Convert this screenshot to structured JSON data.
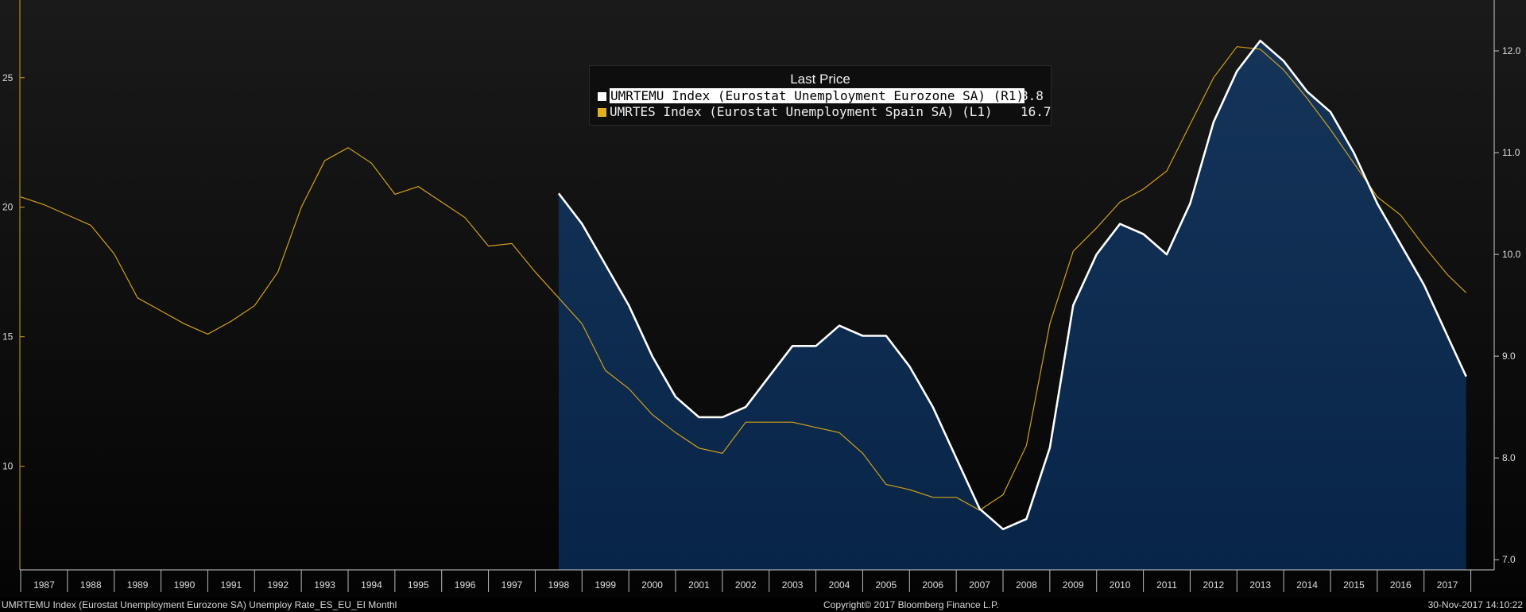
{
  "colors": {
    "background": "#000000",
    "area_fill": "#0f2e52",
    "emu_line": "#ffffff",
    "es_line": "#d4a017",
    "axis": "#cccccc",
    "tick_label": "#dddddd"
  },
  "legend": {
    "title": "Last Price",
    "items": [
      {
        "label": "UMRTEMU Index (Eurostat Unemployment Eurozone SA)  (R1)",
        "value": "8.8",
        "color": "#ffffff"
      },
      {
        "label": "UMRTES Index (Eurostat Unemployment Spain SA)  (L1)",
        "value": "16.7",
        "color": "#e0b020"
      }
    ]
  },
  "footer": {
    "left": "UMRTEMU Index (Eurostat Unemployment Eurozone SA) Unemploy Rate_ES_EU_EI  Monthl",
    "center": "Copyright© 2017 Bloomberg Finance L.P.",
    "right": "30-Nov-2017 14:10:22"
  },
  "chart_data": {
    "type": "line",
    "title": "",
    "xlabel": "",
    "ylabel_left": "",
    "ylabel_right": "",
    "x_range": [
      1986.5,
      2018.0
    ],
    "x_ticks": [
      "1987",
      "1988",
      "1989",
      "1990",
      "1991",
      "1992",
      "1993",
      "1994",
      "1995",
      "1996",
      "1997",
      "1998",
      "1999",
      "2000",
      "2001",
      "2002",
      "2003",
      "2004",
      "2005",
      "2006",
      "2007",
      "2008",
      "2009",
      "2010",
      "2011",
      "2012",
      "2013",
      "2014",
      "2015",
      "2016",
      "2017"
    ],
    "y_left": {
      "range": [
        6.0,
        28.0
      ],
      "ticks": [
        "10",
        "15",
        "20",
        "25"
      ]
    },
    "y_right": {
      "range": [
        6.9,
        12.5
      ],
      "ticks": [
        "7.0",
        "8.0",
        "9.0",
        "10.0",
        "11.0",
        "12.0"
      ]
    },
    "series": [
      {
        "name": "UMRTES Index (Eurostat Unemployment Spain SA)",
        "axis": "left",
        "style": "line",
        "x": [
          1986.5,
          1987.0,
          1987.5,
          1988.0,
          1988.5,
          1989.0,
          1989.5,
          1990.0,
          1990.5,
          1991.0,
          1991.5,
          1992.0,
          1992.5,
          1993.0,
          1993.5,
          1994.0,
          1994.5,
          1995.0,
          1995.5,
          1996.0,
          1996.5,
          1997.0,
          1997.5,
          1998.0,
          1998.5,
          1999.0,
          1999.5,
          2000.0,
          2000.5,
          2001.0,
          2001.5,
          2002.0,
          2002.5,
          2003.0,
          2003.5,
          2004.0,
          2004.5,
          2005.0,
          2005.5,
          2006.0,
          2006.5,
          2007.0,
          2007.5,
          2008.0,
          2008.5,
          2009.0,
          2009.5,
          2010.0,
          2010.5,
          2011.0,
          2011.5,
          2012.0,
          2012.5,
          2013.0,
          2013.5,
          2014.0,
          2014.5,
          2015.0,
          2015.5,
          2016.0,
          2016.5,
          2017.0,
          2017.4
        ],
        "values": [
          20.4,
          20.1,
          19.7,
          19.3,
          18.2,
          16.5,
          16.0,
          15.5,
          15.1,
          15.6,
          16.2,
          17.5,
          20.0,
          21.8,
          22.3,
          21.7,
          20.5,
          20.8,
          20.2,
          19.6,
          18.5,
          18.6,
          17.5,
          16.5,
          15.5,
          13.7,
          13.0,
          12.0,
          11.3,
          10.7,
          10.5,
          11.7,
          11.7,
          11.7,
          11.5,
          11.3,
          10.5,
          9.3,
          9.1,
          8.8,
          8.8,
          8.3,
          8.9,
          10.8,
          15.5,
          18.3,
          19.2,
          20.2,
          20.7,
          21.4,
          23.2,
          25.0,
          26.2,
          26.1,
          25.3,
          24.2,
          23.0,
          21.7,
          20.4,
          19.7,
          18.5,
          17.4,
          16.7
        ]
      },
      {
        "name": "UMRTEMU Index (Eurostat Unemployment Eurozone SA)",
        "axis": "right",
        "style": "area-line",
        "x": [
          1998.0,
          1998.5,
          1999.0,
          1999.5,
          2000.0,
          2000.5,
          2001.0,
          2001.5,
          2002.0,
          2002.5,
          2003.0,
          2003.5,
          2004.0,
          2004.5,
          2005.0,
          2005.5,
          2006.0,
          2006.5,
          2007.0,
          2007.5,
          2008.0,
          2008.5,
          2009.0,
          2009.5,
          2010.0,
          2010.5,
          2011.0,
          2011.5,
          2012.0,
          2012.5,
          2013.0,
          2013.5,
          2014.0,
          2014.5,
          2015.0,
          2015.5,
          2016.0,
          2016.5,
          2017.0,
          2017.4
        ],
        "values": [
          10.6,
          10.3,
          9.9,
          9.5,
          9.0,
          8.6,
          8.4,
          8.4,
          8.5,
          8.8,
          9.1,
          9.1,
          9.3,
          9.2,
          9.2,
          8.9,
          8.5,
          8.0,
          7.5,
          7.3,
          7.4,
          8.1,
          9.5,
          10.0,
          10.3,
          10.2,
          10.0,
          10.5,
          11.3,
          11.8,
          12.1,
          11.9,
          11.6,
          11.4,
          11.0,
          10.5,
          10.1,
          9.7,
          9.2,
          8.8
        ]
      }
    ]
  }
}
